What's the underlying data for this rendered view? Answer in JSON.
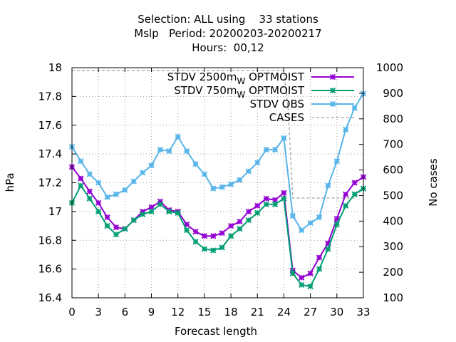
{
  "title_lines": [
    "Selection: ALL using    33 stations",
    "Mslp   Period: 20200203-20200217",
    "Hours:  00,12"
  ],
  "chart_data": {
    "type": "line",
    "xlabel": "Forecast length",
    "ylabel": "hPa",
    "y2label": "No cases",
    "xlim": [
      0,
      33
    ],
    "ylim": [
      16.4,
      18
    ],
    "y2lim": [
      100,
      1000
    ],
    "xticks": [
      0,
      3,
      6,
      9,
      12,
      15,
      18,
      21,
      24,
      27,
      30,
      33
    ],
    "yticks": [
      16.4,
      16.6,
      16.8,
      17,
      17.2,
      17.4,
      17.6,
      17.8,
      18
    ],
    "ytick_labels": [
      "16.4",
      "16.6",
      "16.8",
      "17",
      "17.2",
      "17.4",
      "17.6",
      "17.8",
      "18"
    ],
    "y2ticks": [
      100,
      200,
      300,
      400,
      500,
      600,
      700,
      800,
      900,
      1000
    ],
    "grid": true,
    "legend_position": "top-right",
    "x": [
      0,
      1,
      2,
      3,
      4,
      5,
      6,
      7,
      8,
      9,
      10,
      11,
      12,
      13,
      14,
      15,
      16,
      17,
      18,
      19,
      20,
      21,
      22,
      23,
      24,
      25,
      26,
      27,
      28,
      29,
      30,
      31,
      32,
      33
    ],
    "series": [
      {
        "name": "STDV 2500m",
        "name_sub": "W",
        "name_suffix": " OPTMOIST",
        "color": "#9400d3",
        "marker": "x",
        "values": [
          17.31,
          17.23,
          17.14,
          17.06,
          16.96,
          16.89,
          16.88,
          16.94,
          17.0,
          17.03,
          17.07,
          17.01,
          17.0,
          16.91,
          16.86,
          16.83,
          16.83,
          16.85,
          16.9,
          16.93,
          17.0,
          17.04,
          17.09,
          17.08,
          17.13,
          16.59,
          16.54,
          16.57,
          16.68,
          16.78,
          16.95,
          17.12,
          17.2,
          17.24
        ]
      },
      {
        "name": "STDV 750m",
        "name_sub": "W",
        "name_suffix": " OPTMOIST",
        "color": "#009e73",
        "marker": "x",
        "values": [
          17.06,
          17.18,
          17.09,
          17.0,
          16.9,
          16.84,
          16.88,
          16.94,
          16.98,
          17.0,
          17.05,
          17.0,
          16.99,
          16.87,
          16.79,
          16.74,
          16.73,
          16.75,
          16.83,
          16.88,
          16.94,
          16.99,
          17.05,
          17.05,
          17.09,
          16.57,
          16.49,
          16.48,
          16.6,
          16.74,
          16.91,
          17.04,
          17.12,
          17.16
        ]
      },
      {
        "name": "STDV OBS",
        "color": "#56b4e9",
        "marker": "x",
        "values": [
          17.45,
          17.35,
          17.26,
          17.2,
          17.1,
          17.12,
          17.15,
          17.21,
          17.27,
          17.32,
          17.43,
          17.42,
          17.52,
          17.42,
          17.33,
          17.26,
          17.16,
          17.17,
          17.19,
          17.22,
          17.28,
          17.34,
          17.43,
          17.43,
          17.51,
          16.97,
          16.87,
          16.92,
          16.96,
          17.18,
          17.35,
          17.57,
          17.72,
          17.82
        ]
      },
      {
        "name": "CASES",
        "color": "#a0a0a0",
        "dashed": true,
        "axis": "y2",
        "x": [
          0,
          24,
          24.5,
          25,
          32,
          33
        ],
        "values": [
          990,
          990,
          830,
          490,
          490,
          530
        ]
      }
    ]
  }
}
